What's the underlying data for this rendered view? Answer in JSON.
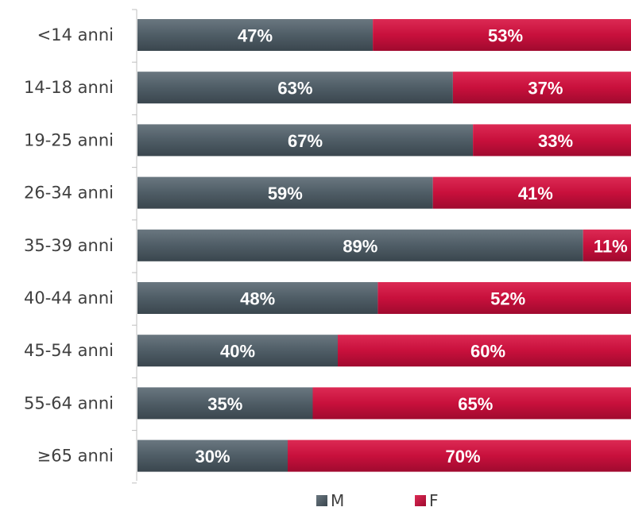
{
  "chart_data": {
    "type": "bar",
    "orientation": "horizontal",
    "stacked": true,
    "categories": [
      "<14 anni",
      "14-18 anni",
      "19-25 anni",
      "26-34 anni",
      "35-39 anni",
      "40-44 anni",
      "45-54 anni",
      "55-64 anni",
      "≥65 anni"
    ],
    "series": [
      {
        "name": "M",
        "color": "#4f5d66",
        "values": [
          47,
          63,
          67,
          59,
          89,
          48,
          40,
          35,
          30
        ],
        "labels": [
          "47%",
          "63%",
          "67%",
          "59%",
          "89%",
          "48%",
          "40%",
          "35%",
          "30%"
        ]
      },
      {
        "name": "F",
        "color": "#c8103c",
        "values": [
          53,
          37,
          33,
          41,
          11,
          52,
          60,
          65,
          70
        ],
        "labels": [
          "53%",
          "37%",
          "33%",
          "41%",
          "11%",
          "52%",
          "60%",
          "65%",
          "70%"
        ]
      }
    ],
    "xlim": [
      0,
      100
    ],
    "grid": false,
    "legend_position": "bottom"
  }
}
